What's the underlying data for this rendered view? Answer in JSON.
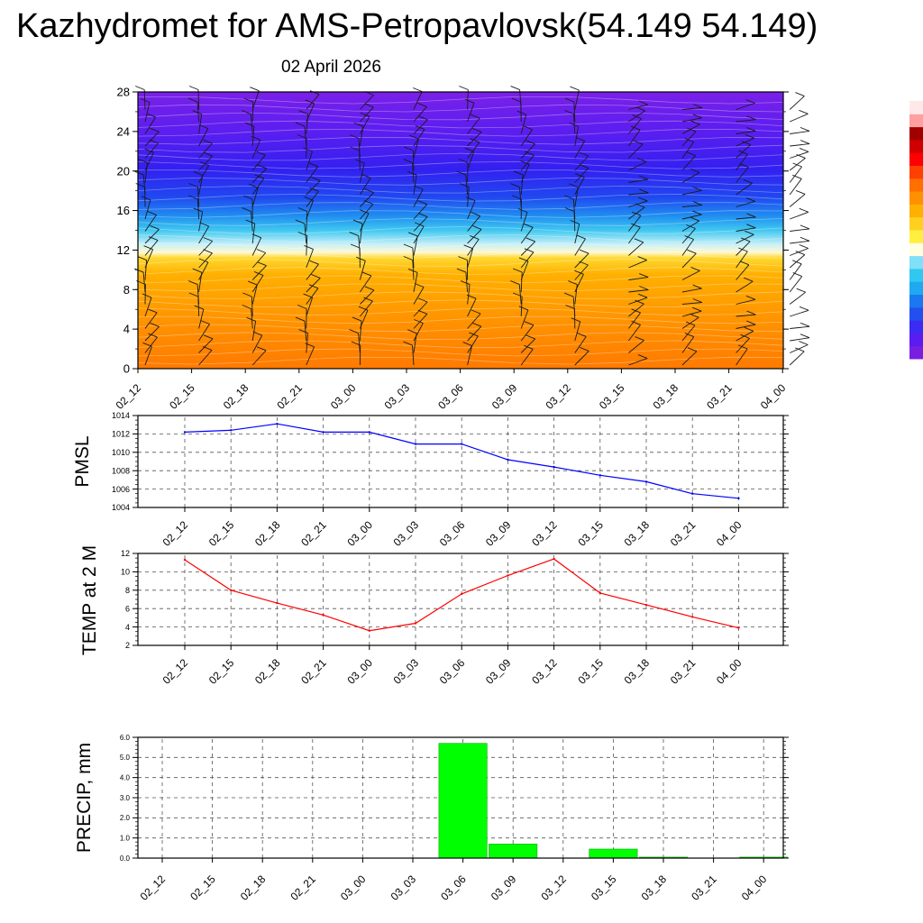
{
  "title": "Kazhydromet for AMS-Petropavlovsk(54.149 54.149)",
  "subtitle": "02 April 2026",
  "colors": {
    "pmsl": "#0000ff",
    "temp": "#ff0000",
    "precip": "#00ff00",
    "grid": "#555555"
  },
  "time_labels": [
    "02_12",
    "02_15",
    "02_18",
    "02_21",
    "03_00",
    "03_03",
    "03_06",
    "03_09",
    "03_12",
    "03_15",
    "03_18",
    "03_21",
    "04_00"
  ],
  "chart_data": [
    {
      "type": "heatmap",
      "name": "vertical-section",
      "title": "",
      "xlabel": "",
      "ylabel": "",
      "x": [
        "02_12",
        "02_15",
        "02_18",
        "02_21",
        "03_00",
        "03_03",
        "03_06",
        "03_09",
        "03_12",
        "03_15",
        "03_18",
        "03_21",
        "04_00"
      ],
      "y_ticks": [
        0,
        4,
        8,
        12,
        16,
        20,
        24,
        28
      ],
      "ylim": [
        0,
        28
      ],
      "colorbar": [
        "#7a1fe0",
        "#5a1cf0",
        "#3a2cf5",
        "#2250f0",
        "#1a78f0",
        "#20a8f0",
        "#30c8f0",
        "#80e0f8",
        "#ffffe0",
        "#fff040",
        "#ffd020",
        "#ffb000",
        "#ff9000",
        "#ff7000",
        "#ff4000",
        "#ff0000",
        "#d00000",
        "#a00000",
        "#ffa0a0",
        "#ffe8e8"
      ]
    },
    {
      "type": "line",
      "name": "pmsl",
      "title": "",
      "xlabel": "",
      "ylabel": "PMSL",
      "categories": [
        "02_12",
        "02_15",
        "02_18",
        "02_21",
        "03_00",
        "03_03",
        "03_06",
        "03_09",
        "03_12",
        "03_15",
        "03_18",
        "03_21",
        "04_00"
      ],
      "values": [
        1012.2,
        1012.4,
        1013.1,
        1012.2,
        1012.2,
        1010.9,
        1010.9,
        1009.2,
        1008.4,
        1007.5,
        1006.8,
        1005.5,
        1005.0
      ],
      "y_ticks": [
        1004,
        1006,
        1008,
        1010,
        1012,
        1014
      ],
      "ylim": [
        1004,
        1014
      ],
      "grid": true
    },
    {
      "type": "line",
      "name": "temp",
      "title": "",
      "xlabel": "",
      "ylabel": "TEMP at 2 M",
      "categories": [
        "02_12",
        "02_15",
        "02_18",
        "02_21",
        "03_00",
        "03_03",
        "03_06",
        "03_09",
        "03_12",
        "03_15",
        "03_18",
        "03_21",
        "04_00"
      ],
      "values": [
        11.3,
        8.0,
        6.6,
        5.3,
        3.6,
        4.4,
        7.6,
        9.6,
        11.4,
        7.7,
        6.4,
        5.1,
        3.9
      ],
      "y_ticks": [
        2,
        4,
        6,
        8,
        10,
        12
      ],
      "ylim": [
        2,
        12
      ],
      "grid": true
    },
    {
      "type": "bar",
      "name": "precip",
      "title": "",
      "xlabel": "",
      "ylabel": "PRECIP, mm",
      "categories": [
        "02_12",
        "02_15",
        "02_18",
        "02_21",
        "03_00",
        "03_03",
        "03_06",
        "03_09",
        "03_12",
        "03_15",
        "03_18",
        "03_21",
        "04_00"
      ],
      "values": [
        0,
        0,
        0,
        0,
        0,
        0,
        5.7,
        0.7,
        0,
        0.45,
        0.05,
        0,
        0.05
      ],
      "y_ticks": [
        "0.0",
        "1.0",
        "2.0",
        "3.0",
        "4.0",
        "5.0",
        "6.0"
      ],
      "ylim": [
        0,
        6
      ],
      "grid": true
    }
  ]
}
